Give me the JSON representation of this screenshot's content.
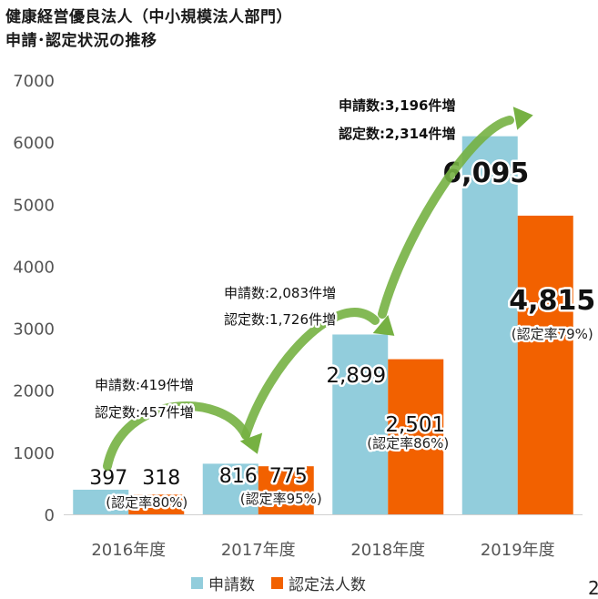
{
  "header": {
    "title_line1": "健康経営優良法人（中小規模法人部門）",
    "title_line2": "申請･認定状況の推移"
  },
  "page_number": "2",
  "colors": {
    "application": "#92cddc",
    "certified": "#f26100",
    "arrow": "#76b142",
    "axis_text": "#555555"
  },
  "chart_data": {
    "type": "bar",
    "categories": [
      "2016年度",
      "2017年度",
      "2018年度",
      "2019年度"
    ],
    "series": [
      {
        "name": "申請数",
        "values": [
          397,
          816,
          2899,
          6095
        ],
        "labels": [
          "397",
          "816",
          "2,899",
          "6,095"
        ]
      },
      {
        "name": "認定法人数",
        "values": [
          318,
          775,
          2501,
          4815
        ],
        "labels": [
          "318",
          "775",
          "2,501",
          "4,815"
        ]
      }
    ],
    "certification_rates": [
      "(認定率80%)",
      "(認定率95%)",
      "(認定率86%)",
      "(認定率79%)"
    ],
    "ylim": [
      0,
      7000
    ],
    "yticks": [
      0,
      1000,
      2000,
      3000,
      4000,
      5000,
      6000,
      7000
    ],
    "increase_annotations": [
      {
        "line1": "申請数:419件増",
        "line2": "認定数:457件増"
      },
      {
        "line1": "申請数:2,083件増",
        "line2": "認定数:1,726件増"
      },
      {
        "line1": "申請数:3,196件増",
        "line2": "認定数:2,314件増"
      }
    ],
    "legend_position": "bottom",
    "grid": false
  }
}
